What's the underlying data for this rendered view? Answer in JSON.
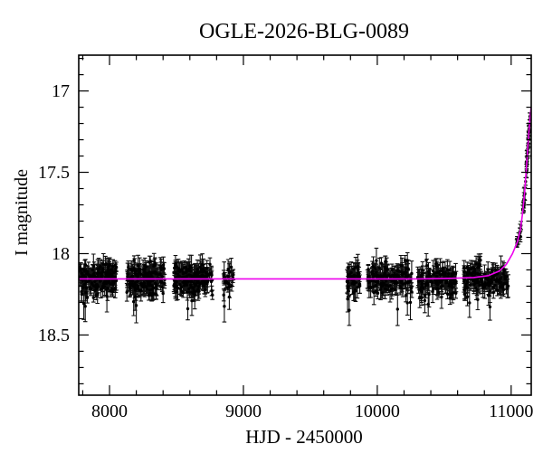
{
  "title": "OGLE-2026-BLG-0089",
  "axes": {
    "xlabel": "HJD - 2450000",
    "ylabel": "I magnitude",
    "xlim": [
      7770,
      11150
    ],
    "ylim_mag": [
      16.78,
      18.87
    ],
    "y_axis_inverted_magnitude": true,
    "x_major_ticks": [
      8000,
      9000,
      10000,
      11000
    ],
    "x_major_labels": [
      "8000",
      "9000",
      "10000",
      "11000"
    ],
    "x_minor_step": 200,
    "y_major_ticks": [
      17,
      17.5,
      18,
      18.5
    ],
    "y_major_labels": [
      "17",
      "17.5",
      "18",
      "18.5"
    ],
    "y_minor_step": 0.1,
    "grid": "off",
    "legend": "none"
  },
  "chart_data": {
    "type": "scatter",
    "description": "OGLE microlensing event light curve: seasonal I-band photometry flat at baseline ~18.16 mag, brightening sharply to ~17.15 mag near HJD-2450000 ~ 11100-11150, with magenta model curve.",
    "baseline_mag": 18.155,
    "season_mag_sd": 0.045,
    "seasons": [
      {
        "t_start": 7778,
        "t_end": 8052,
        "n": 170
      },
      {
        "t_start": 8128,
        "t_end": 8412,
        "n": 170
      },
      {
        "t_start": 8478,
        "t_end": 8772,
        "n": 170
      },
      {
        "t_start": 8852,
        "t_end": 8925,
        "n": 22
      },
      {
        "t_start": 9772,
        "t_end": 9870,
        "n": 48
      },
      {
        "t_start": 9918,
        "t_end": 10258,
        "n": 150
      },
      {
        "t_start": 10302,
        "t_end": 10592,
        "n": 130
      },
      {
        "t_start": 10648,
        "t_end": 10985,
        "n": 150
      }
    ],
    "n_outliers_per_season": [
      3,
      3,
      3,
      1,
      2,
      3,
      2,
      3
    ],
    "outlier_mag_range": [
      18.25,
      18.35
    ],
    "rise_clumps": [
      {
        "t_start": 11042,
        "t_end": 11056,
        "n": 4
      },
      {
        "t_start": 11062,
        "t_end": 11077,
        "n": 5
      },
      {
        "t_start": 11085,
        "t_end": 11103,
        "n": 9
      },
      {
        "t_start": 11106,
        "t_end": 11121,
        "n": 9
      },
      {
        "t_start": 11124,
        "t_end": 11144,
        "n": 14
      }
    ],
    "rise_mag_sd": 0.025,
    "model_curve": {
      "points": [
        [
          7770,
          18.155
        ],
        [
          9500,
          18.155
        ],
        [
          10300,
          18.155
        ],
        [
          10550,
          18.152
        ],
        [
          10720,
          18.147
        ],
        [
          10830,
          18.135
        ],
        [
          10910,
          18.108
        ],
        [
          10965,
          18.065
        ],
        [
          11010,
          18.0
        ],
        [
          11045,
          17.93
        ],
        [
          11070,
          17.85
        ],
        [
          11088,
          17.735
        ],
        [
          11101,
          17.615
        ],
        [
          11111,
          17.505
        ],
        [
          11120,
          17.4
        ],
        [
          11128,
          17.305
        ],
        [
          11135,
          17.225
        ],
        [
          11141,
          17.165
        ],
        [
          11146,
          17.125
        ],
        [
          11149,
          17.1
        ]
      ]
    },
    "colors": {
      "background": "#ffffff",
      "frame": "#000000",
      "data_points": "#000000",
      "error_bars": "#111111",
      "model_line": "#ee00ee"
    }
  }
}
